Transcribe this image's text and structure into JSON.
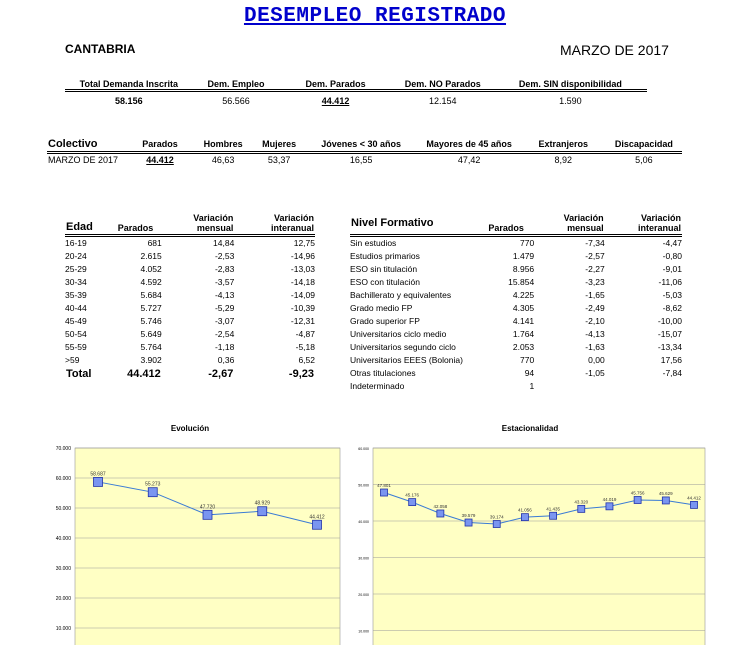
{
  "header": {
    "title": "DESEMPLEO REGISTRADO",
    "region": "CANTABRIA",
    "period": "MARZO DE 2017"
  },
  "summary": {
    "headers": [
      "Total Demanda Inscrita",
      "Dem. Empleo",
      "Dem. Parados",
      "Dem. NO Parados",
      "Dem. SIN disponibilidad"
    ],
    "values": [
      "58.156",
      "56.566",
      "44.412",
      "12.154",
      "1.590"
    ]
  },
  "colectivo": {
    "headers": [
      "Colectivo",
      "Parados",
      "Hombres",
      "Mujeres",
      "Jóvenes < 30 años",
      "Mayores de 45 años",
      "Extranjeros",
      "Discapacidad"
    ],
    "row": [
      "MARZO DE 2017",
      "44.412",
      "46,63",
      "53,37",
      "16,55",
      "47,42",
      "8,92",
      "5,06"
    ]
  },
  "edad": {
    "headers": [
      "Edad",
      "Parados",
      "Variación mensual",
      "Variación interanual"
    ],
    "rows": [
      [
        "16-19",
        "681",
        "14,84",
        "12,75"
      ],
      [
        "20-24",
        "2.615",
        "-2,53",
        "-14,96"
      ],
      [
        "25-29",
        "4.052",
        "-2,83",
        "-13,03"
      ],
      [
        "30-34",
        "4.592",
        "-3,57",
        "-14,18"
      ],
      [
        "35-39",
        "5.684",
        "-4,13",
        "-14,09"
      ],
      [
        "40-44",
        "5.727",
        "-5,29",
        "-10,39"
      ],
      [
        "45-49",
        "5.746",
        "-3,07",
        "-12,31"
      ],
      [
        "50-54",
        "5.649",
        "-2,54",
        "-4,87"
      ],
      [
        "55-59",
        "5.764",
        "-1,18",
        "-5,18"
      ],
      [
        ">59",
        "3.902",
        "0,36",
        "6,52"
      ]
    ],
    "total": [
      "Total",
      "44.412",
      "-2,67",
      "-9,23"
    ]
  },
  "nivel": {
    "headers": [
      "Nivel Formativo",
      "Parados",
      "Variación mensual",
      "Variación interanual"
    ],
    "rows": [
      [
        "Sin estudios",
        "770",
        "-7,34",
        "-4,47"
      ],
      [
        "Estudios primarios",
        "1.479",
        "-2,57",
        "-0,80"
      ],
      [
        "ESO sin titulación",
        "8.956",
        "-2,27",
        "-9,01"
      ],
      [
        "ESO con titulación",
        "15.854",
        "-3,23",
        "-11,06"
      ],
      [
        "Bachillerato y equivalentes",
        "4.225",
        "-1,65",
        "-5,03"
      ],
      [
        "Grado medio FP",
        "4.305",
        "-2,49",
        "-8,62"
      ],
      [
        "Grado superior FP",
        "4.141",
        "-2,10",
        "-10,00"
      ],
      [
        "Universitarios ciclo medio",
        "1.764",
        "-4,13",
        "-15,07"
      ],
      [
        "Universitarios segundo ciclo",
        "2.053",
        "-1,63",
        "-13,34"
      ],
      [
        "Universitarios EEES (Bolonia)",
        "770",
        "0,00",
        "17,56"
      ],
      [
        "Otras titulaciones",
        "94",
        "-1,05",
        "-7,84"
      ],
      [
        "Indeterminado",
        "1",
        "",
        ""
      ]
    ]
  },
  "chart_data": [
    {
      "type": "line",
      "title": "Evolución",
      "values": [
        58687,
        55273,
        47720,
        48929,
        44412
      ],
      "labels": [
        "58.687",
        "55.273",
        "47.720",
        "48.929",
        "44.412"
      ],
      "ylim": [
        0,
        70000
      ],
      "ticks": [
        "70.000",
        "60.000",
        "50.000",
        "40.000",
        "30.000",
        "20.000",
        "10.000"
      ],
      "grid": true,
      "colors": {
        "line": "#3a7bd5",
        "marker": "#4a6fe3",
        "bg": "#ffffc4"
      }
    },
    {
      "type": "line",
      "title": "Estacionalidad",
      "values": [
        47801,
        45176,
        42058,
        39579,
        39174,
        41056,
        41435,
        43320,
        44019,
        45756,
        45629,
        44412
      ],
      "labels": [
        "47.801",
        "45.176",
        "42.058",
        "39.579",
        "39.174",
        "41.056",
        "41.435",
        "43.320",
        "44.019",
        "45.756",
        "45.629",
        "44.412"
      ],
      "ylim": [
        0,
        60000
      ],
      "ticks": [
        "60.000",
        "50.000",
        "40.000",
        "30.000",
        "20.000",
        "10.000"
      ],
      "grid": true,
      "colors": {
        "line": "#3a7bd5",
        "marker": "#4a6fe3",
        "bg": "#ffffc4"
      }
    }
  ]
}
